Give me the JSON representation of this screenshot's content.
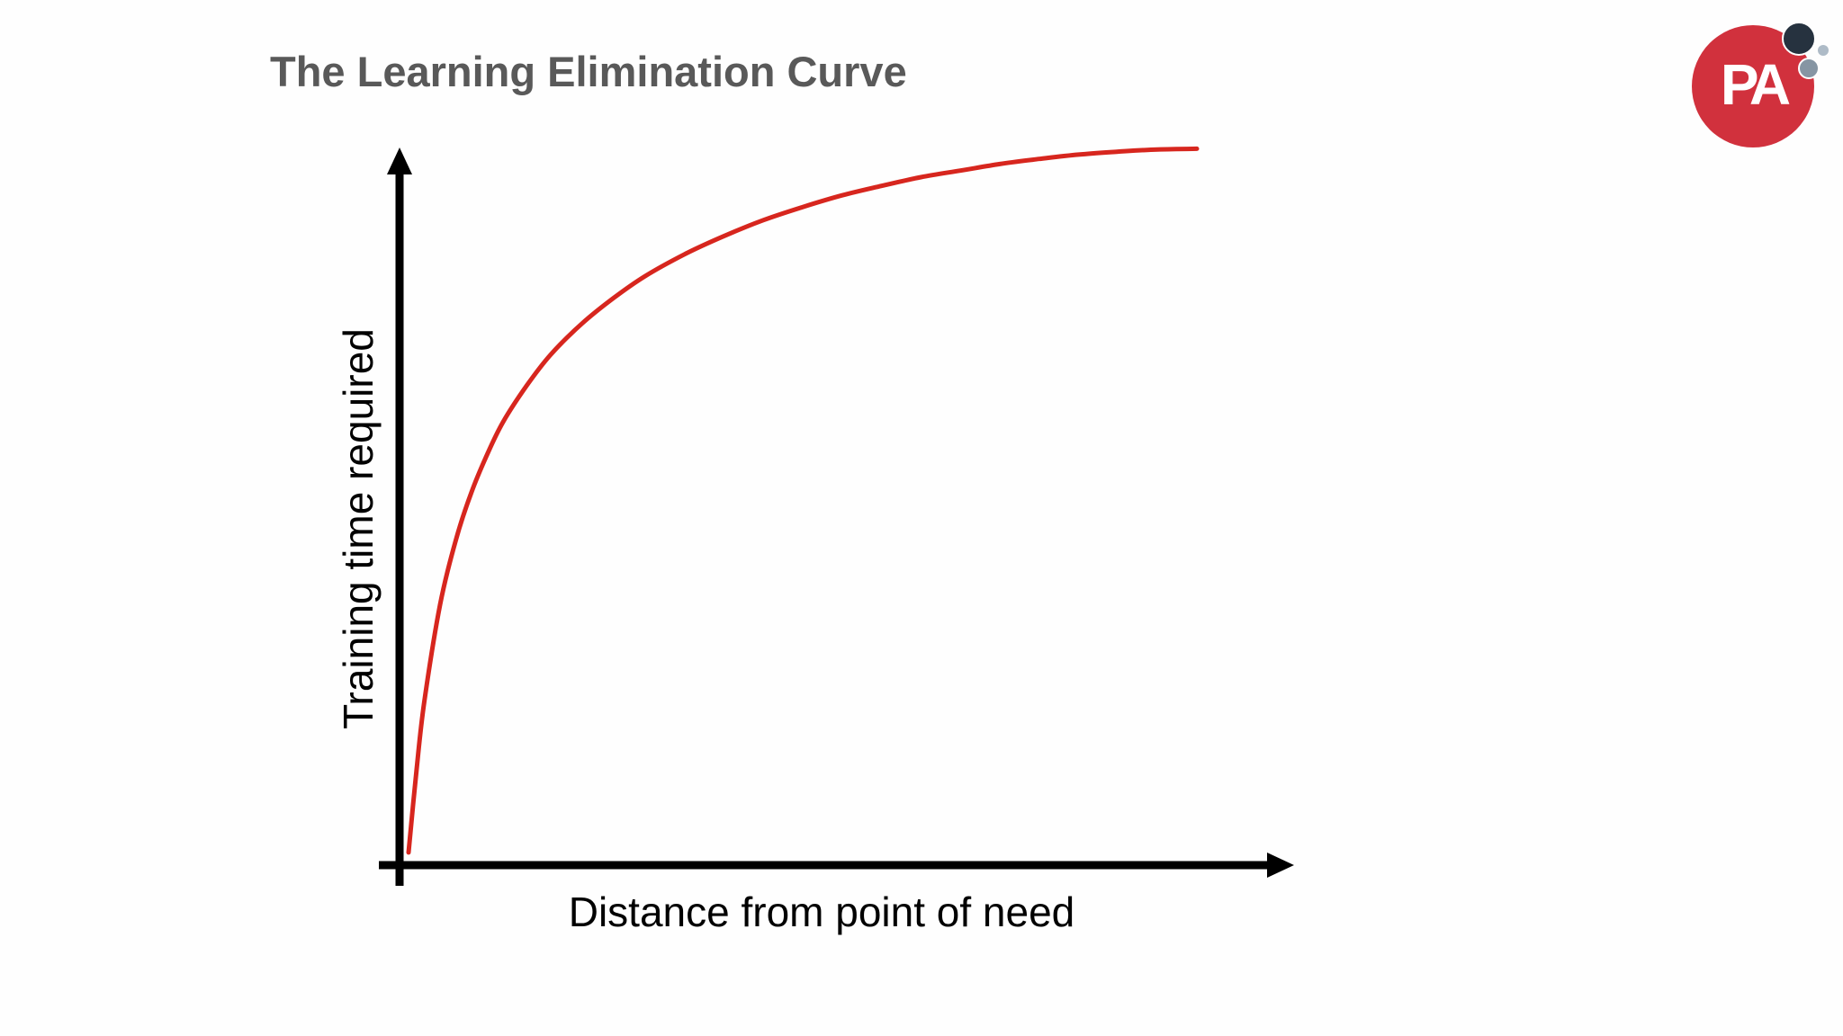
{
  "title": "The Learning Elimination Curve",
  "logo": {
    "text": "PA",
    "brand_color": "#d1313d"
  },
  "chart_data": {
    "type": "line",
    "title": "",
    "xlabel": "Distance from point of need",
    "ylabel": "Training time required",
    "xlim": [
      0,
      1
    ],
    "ylim": [
      0,
      1
    ],
    "grid": false,
    "legend": "none",
    "ticks": false,
    "series": [
      {
        "color": "#d7261e",
        "x": [
          0.0,
          0.01,
          0.02,
          0.04,
          0.06,
          0.08,
          0.1,
          0.12,
          0.15,
          0.18,
          0.22,
          0.26,
          0.3,
          0.35,
          0.4,
          0.45,
          0.5,
          0.55,
          0.6,
          0.65,
          0.7,
          0.75,
          0.8,
          0.85,
          0.9,
          0.95,
          1.0
        ],
        "y": [
          0.015,
          0.127,
          0.222,
          0.355,
          0.444,
          0.51,
          0.562,
          0.606,
          0.656,
          0.698,
          0.741,
          0.776,
          0.806,
          0.836,
          0.861,
          0.883,
          0.901,
          0.917,
          0.93,
          0.942,
          0.951,
          0.96,
          0.967,
          0.973,
          0.977,
          0.98,
          0.981
        ]
      }
    ]
  }
}
